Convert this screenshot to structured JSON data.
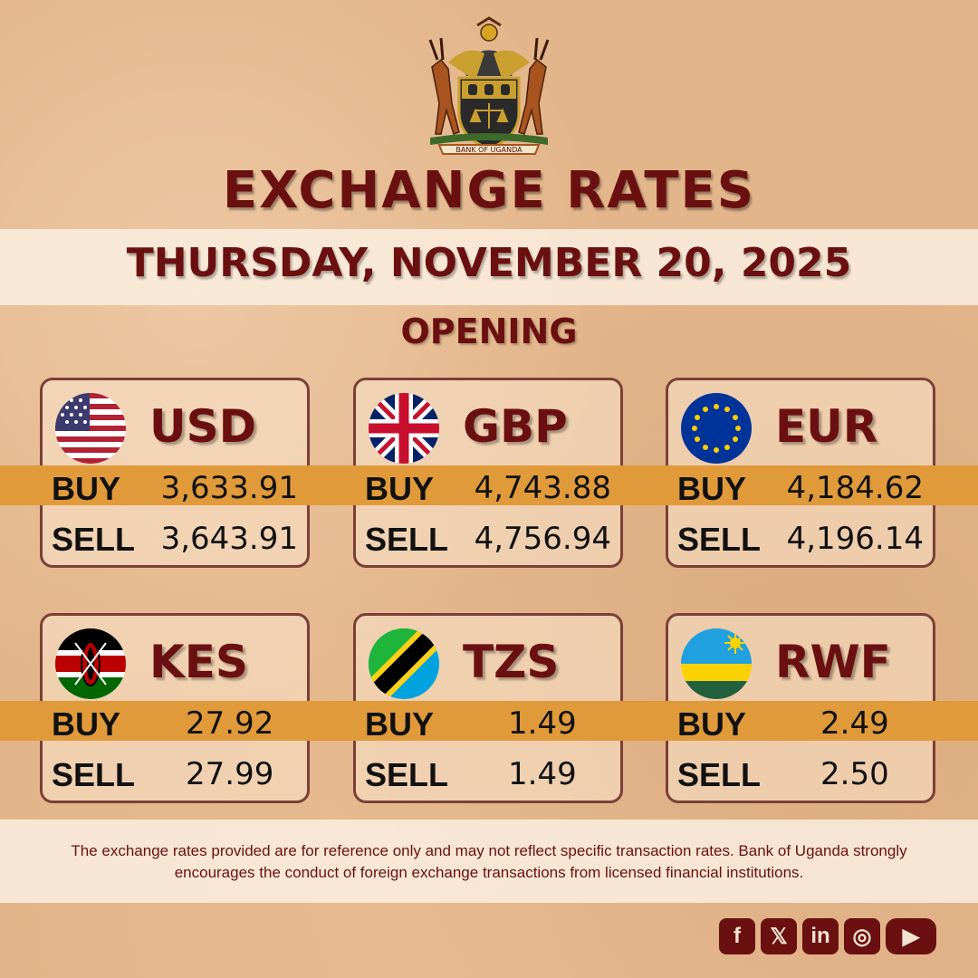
{
  "crest": {
    "caption": "BANK OF UGANDA"
  },
  "header": {
    "title": "EXCHANGE RATES",
    "date": "THURSDAY, NOVEMBER 20, 2025",
    "session": "OPENING"
  },
  "labels": {
    "buy": "BUY",
    "sell": "SELL"
  },
  "currencies": [
    {
      "code": "USD",
      "flag": "us-flag-icon",
      "buy": "3,633.91",
      "sell": "3,643.91"
    },
    {
      "code": "GBP",
      "flag": "uk-flag-icon",
      "buy": "4,743.88",
      "sell": "4,756.94"
    },
    {
      "code": "EUR",
      "flag": "eu-flag-icon",
      "buy": "4,184.62",
      "sell": "4,196.14"
    },
    {
      "code": "KES",
      "flag": "kenya-flag-icon",
      "buy": "27.92",
      "sell": "27.99"
    },
    {
      "code": "TZS",
      "flag": "tanzania-flag-icon",
      "buy": "1.49",
      "sell": "1.49"
    },
    {
      "code": "RWF",
      "flag": "rwanda-flag-icon",
      "buy": "2.49",
      "sell": "2.50"
    }
  ],
  "disclaimer": "The exchange rates provided are for reference only and may not reflect specific transaction rates. Bank of Uganda strongly encourages the conduct of foreign exchange transactions from licensed financial institutions.",
  "socials": [
    {
      "name": "facebook-icon",
      "glyph": "f"
    },
    {
      "name": "x-icon",
      "glyph": "𝕏"
    },
    {
      "name": "linkedin-icon",
      "glyph": "in"
    },
    {
      "name": "instagram-icon",
      "glyph": "◎"
    },
    {
      "name": "youtube-icon",
      "glyph": "▶"
    }
  ],
  "colors": {
    "background": "#e3b58a",
    "accent_band": "#e09a3a",
    "title": "#6b1010",
    "card_border": "#7a4038"
  }
}
